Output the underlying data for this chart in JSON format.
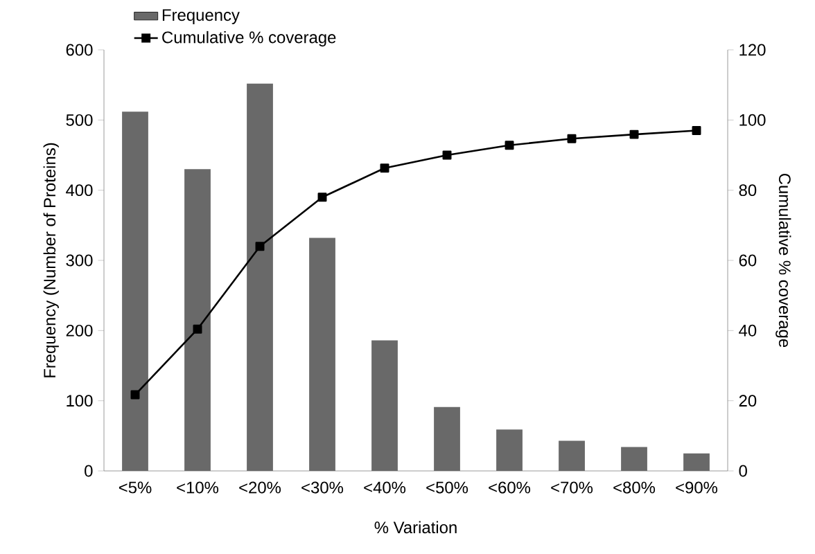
{
  "chart_data": {
    "type": "bar",
    "xlabel": "% Variation",
    "ylabel": "Frequency (Number of Proteins)",
    "y2label": "Cumulative % coverage",
    "categories": [
      "<5%",
      "<10%",
      "<20%",
      "<30%",
      "<40%",
      "<50%",
      "<60%",
      "<70%",
      "<80%",
      "<90%"
    ],
    "series": [
      {
        "name": "Frequency",
        "color": "#696969",
        "values": [
          512,
          430,
          552,
          332,
          186,
          91,
          59,
          43,
          34,
          25
        ]
      },
      {
        "name": "Cumulative % coverage",
        "type": "line",
        "axis": "y2",
        "color": "#000000",
        "marker": "square",
        "values": [
          21.7,
          40.4,
          64,
          78,
          86.3,
          90,
          92.8,
          94.7,
          95.9,
          97
        ]
      }
    ],
    "ylim": [
      0,
      600
    ],
    "yticks": [
      0,
      100,
      200,
      300,
      400,
      500,
      600
    ],
    "y2lim": [
      0,
      120
    ],
    "y2ticks": [
      0,
      20,
      40,
      60,
      80,
      100,
      120
    ],
    "grid": false,
    "legend": "top left"
  }
}
